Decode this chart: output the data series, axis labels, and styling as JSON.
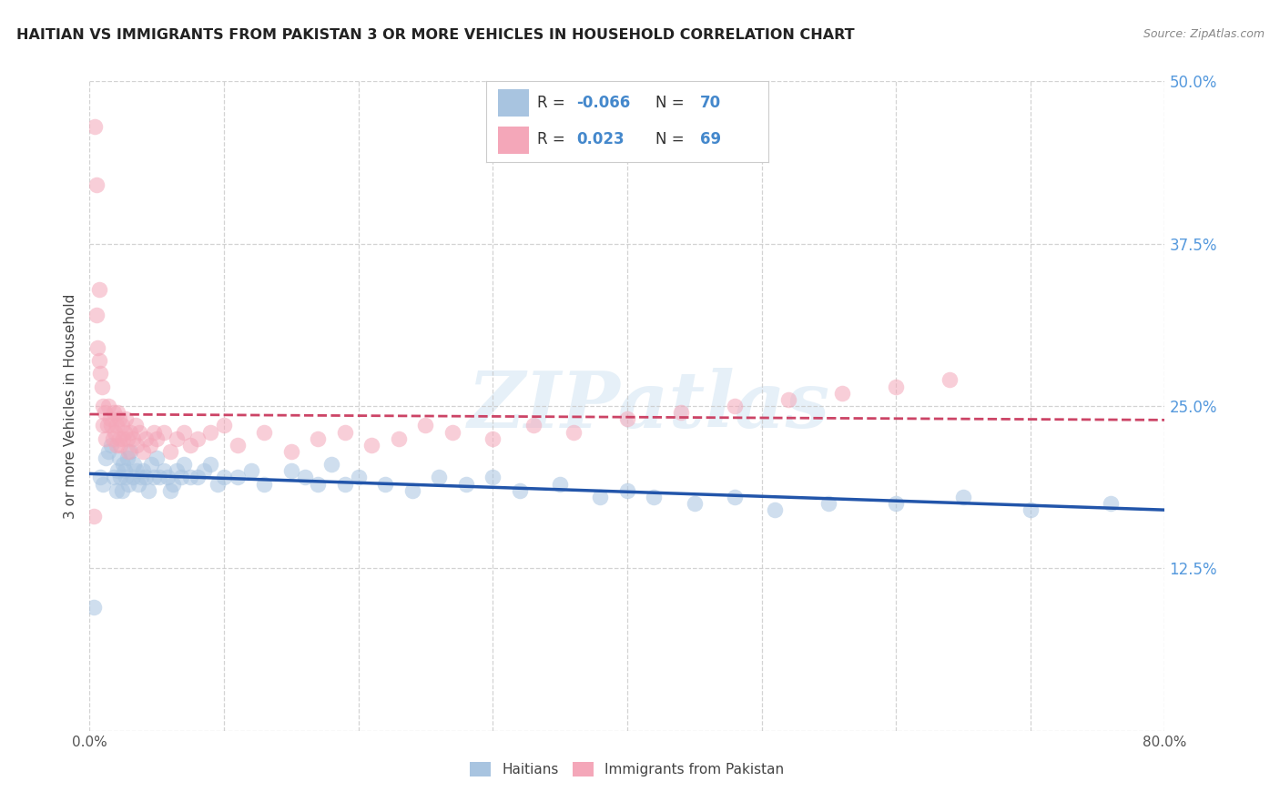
{
  "title": "HAITIAN VS IMMIGRANTS FROM PAKISTAN 3 OR MORE VEHICLES IN HOUSEHOLD CORRELATION CHART",
  "source": "Source: ZipAtlas.com",
  "ylabel": "3 or more Vehicles in Household",
  "xlim": [
    0.0,
    0.8
  ],
  "ylim": [
    0.0,
    0.5
  ],
  "watermark": "ZIPatlas",
  "blue_R": -0.066,
  "blue_N": 70,
  "pink_R": 0.023,
  "pink_N": 69,
  "blue_color": "#a8c4e0",
  "blue_line_color": "#2255aa",
  "pink_color": "#f4a7b9",
  "pink_line_color": "#cc4466",
  "blue_scatter_x": [
    0.003,
    0.008,
    0.01,
    0.012,
    0.014,
    0.016,
    0.018,
    0.02,
    0.021,
    0.022,
    0.023,
    0.024,
    0.025,
    0.026,
    0.027,
    0.028,
    0.029,
    0.03,
    0.032,
    0.033,
    0.035,
    0.036,
    0.038,
    0.04,
    0.042,
    0.044,
    0.046,
    0.048,
    0.05,
    0.052,
    0.055,
    0.058,
    0.06,
    0.062,
    0.065,
    0.068,
    0.07,
    0.075,
    0.08,
    0.085,
    0.09,
    0.095,
    0.1,
    0.11,
    0.12,
    0.13,
    0.15,
    0.16,
    0.17,
    0.18,
    0.19,
    0.2,
    0.22,
    0.24,
    0.26,
    0.28,
    0.3,
    0.32,
    0.35,
    0.38,
    0.4,
    0.42,
    0.45,
    0.48,
    0.51,
    0.55,
    0.6,
    0.65,
    0.7,
    0.76
  ],
  "blue_scatter_y": [
    0.095,
    0.195,
    0.19,
    0.21,
    0.215,
    0.22,
    0.195,
    0.185,
    0.2,
    0.21,
    0.195,
    0.185,
    0.205,
    0.2,
    0.195,
    0.21,
    0.19,
    0.215,
    0.195,
    0.205,
    0.2,
    0.19,
    0.195,
    0.2,
    0.195,
    0.185,
    0.205,
    0.195,
    0.21,
    0.195,
    0.2,
    0.195,
    0.185,
    0.19,
    0.2,
    0.195,
    0.205,
    0.195,
    0.195,
    0.2,
    0.205,
    0.19,
    0.195,
    0.195,
    0.2,
    0.19,
    0.2,
    0.195,
    0.19,
    0.205,
    0.19,
    0.195,
    0.19,
    0.185,
    0.195,
    0.19,
    0.195,
    0.185,
    0.19,
    0.18,
    0.185,
    0.18,
    0.175,
    0.18,
    0.17,
    0.175,
    0.175,
    0.18,
    0.17,
    0.175
  ],
  "pink_scatter_x": [
    0.003,
    0.004,
    0.005,
    0.005,
    0.006,
    0.007,
    0.007,
    0.008,
    0.009,
    0.01,
    0.01,
    0.011,
    0.012,
    0.013,
    0.014,
    0.015,
    0.016,
    0.017,
    0.018,
    0.019,
    0.02,
    0.02,
    0.021,
    0.022,
    0.022,
    0.023,
    0.024,
    0.025,
    0.026,
    0.027,
    0.028,
    0.029,
    0.03,
    0.032,
    0.034,
    0.035,
    0.037,
    0.04,
    0.042,
    0.045,
    0.048,
    0.05,
    0.055,
    0.06,
    0.065,
    0.07,
    0.075,
    0.08,
    0.09,
    0.1,
    0.11,
    0.13,
    0.15,
    0.17,
    0.19,
    0.21,
    0.23,
    0.25,
    0.27,
    0.3,
    0.33,
    0.36,
    0.4,
    0.44,
    0.48,
    0.52,
    0.56,
    0.6,
    0.64
  ],
  "pink_scatter_y": [
    0.165,
    0.465,
    0.42,
    0.32,
    0.295,
    0.34,
    0.285,
    0.275,
    0.265,
    0.25,
    0.235,
    0.245,
    0.225,
    0.235,
    0.25,
    0.24,
    0.235,
    0.225,
    0.245,
    0.23,
    0.235,
    0.22,
    0.245,
    0.225,
    0.24,
    0.22,
    0.235,
    0.225,
    0.23,
    0.24,
    0.225,
    0.215,
    0.23,
    0.225,
    0.235,
    0.22,
    0.23,
    0.215,
    0.225,
    0.22,
    0.23,
    0.225,
    0.23,
    0.215,
    0.225,
    0.23,
    0.22,
    0.225,
    0.23,
    0.235,
    0.22,
    0.23,
    0.215,
    0.225,
    0.23,
    0.22,
    0.225,
    0.235,
    0.23,
    0.225,
    0.235,
    0.23,
    0.24,
    0.245,
    0.25,
    0.255,
    0.26,
    0.265,
    0.27
  ]
}
